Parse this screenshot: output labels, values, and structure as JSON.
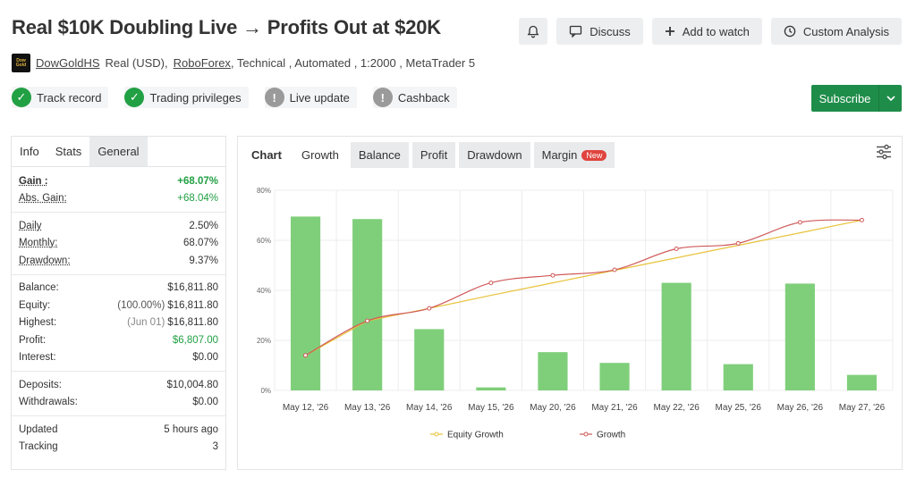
{
  "title": "Real $10K Doubling Live → Profits Out at $20K",
  "actions": {
    "discuss": "Discuss",
    "watch": "Add to watch",
    "analysis": "Custom Analysis"
  },
  "meta": {
    "logo_line1": "Dow",
    "logo_line2": "Gold",
    "author": "DowGoldHS",
    "account_type": "Real (USD),",
    "broker": "RoboForex",
    "details": ", Technical , Automated , 1:2000 , MetaTrader 5"
  },
  "badges": [
    {
      "label": "Track record",
      "status": "ok"
    },
    {
      "label": "Trading privileges",
      "status": "ok"
    },
    {
      "label": "Live update",
      "status": "na"
    },
    {
      "label": "Cashback",
      "status": "na"
    }
  ],
  "subscribe": "Subscribe",
  "stats_tabs": [
    "Info",
    "Stats",
    "General"
  ],
  "stats": {
    "gain": {
      "label": "Gain :",
      "value": "+68.07%"
    },
    "abs_gain": {
      "label": "Abs. Gain:",
      "value": "+68.04%"
    },
    "daily": {
      "label": "Daily",
      "value": "2.50%"
    },
    "monthly": {
      "label": "Monthly:",
      "value": "68.07%"
    },
    "drawdown": {
      "label": "Drawdown:",
      "value": "9.37%"
    },
    "balance": {
      "label": "Balance:",
      "value": "$16,811.80"
    },
    "equity": {
      "label": "Equity:",
      "note": "(100.00%)",
      "value": "$16,811.80"
    },
    "highest": {
      "label": "Highest:",
      "note": "(Jun 01)",
      "value": "$16,811.80"
    },
    "profit": {
      "label": "Profit:",
      "value": "$6,807.00"
    },
    "interest": {
      "label": "Interest:",
      "value": "$0.00"
    },
    "deposits": {
      "label": "Deposits:",
      "value": "$10,004.80"
    },
    "withdrawals": {
      "label": "Withdrawals:",
      "value": "$0.00"
    },
    "updated": {
      "label": "Updated",
      "value": "5 hours ago"
    },
    "tracking": {
      "label": "Tracking",
      "value": "3"
    }
  },
  "chart_tabs": {
    "chart": "Chart",
    "growth": "Growth",
    "balance": "Balance",
    "profit": "Profit",
    "drawdown": "Drawdown",
    "margin": "Margin",
    "new_tag": "New"
  },
  "chart_data": {
    "type": "bar",
    "categories": [
      "May 12, '26",
      "May 13, '26",
      "May 14, '26",
      "May 15, '26",
      "May 20, '26",
      "May 21, '26",
      "May 22, '26",
      "May 25, '26",
      "May 26, '26",
      "May 27, '26"
    ],
    "y_ticks": [
      "0%",
      "20%",
      "40%",
      "60%",
      "80%"
    ],
    "ylim": [
      0,
      80
    ],
    "bar_values": [
      69.5,
      68.5,
      24.5,
      1.2,
      15.3,
      11.0,
      43.0,
      10.5,
      42.7,
      6.2
    ],
    "series": [
      {
        "name": "Equity Growth",
        "type": "line",
        "color": "#e8c23a",
        "values": [
          14.0,
          27.8,
          32.8,
          38.0,
          43.0,
          48.0,
          53.0,
          58.0,
          63.0,
          68.07
        ]
      },
      {
        "name": "Growth",
        "type": "line",
        "color": "#d05a5a",
        "values": [
          14.0,
          27.8,
          32.8,
          43.0,
          46.0,
          48.2,
          56.6,
          58.8,
          67.2,
          68.07
        ]
      }
    ],
    "bar_color": "#7fcf7a",
    "grid": true,
    "legend": "bottom-center"
  }
}
